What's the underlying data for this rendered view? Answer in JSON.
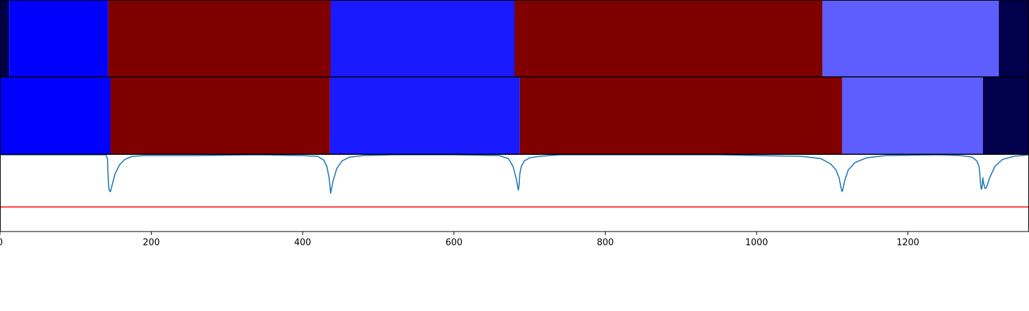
{
  "chart_data": [
    {
      "type": "bar",
      "subtype": "segmentation-band",
      "panel": "top",
      "xlim": [
        0,
        1360
      ],
      "segments": [
        {
          "start": 0,
          "end": 12,
          "color": "#00004d"
        },
        {
          "start": 12,
          "end": 143,
          "color": "#0000ff"
        },
        {
          "start": 143,
          "end": 437,
          "color": "#800000"
        },
        {
          "start": 437,
          "end": 680,
          "color": "#1a1aff"
        },
        {
          "start": 680,
          "end": 1087,
          "color": "#800000"
        },
        {
          "start": 1087,
          "end": 1320,
          "color": "#5e5eff"
        },
        {
          "start": 1320,
          "end": 1360,
          "color": "#00004d"
        }
      ]
    },
    {
      "type": "bar",
      "subtype": "segmentation-band",
      "panel": "middle",
      "xlim": [
        0,
        1360
      ],
      "segments": [
        {
          "start": 0,
          "end": 146,
          "color": "#0000ff"
        },
        {
          "start": 146,
          "end": 436,
          "color": "#800000"
        },
        {
          "start": 436,
          "end": 687,
          "color": "#1a1aff"
        },
        {
          "start": 687,
          "end": 1113,
          "color": "#800000"
        },
        {
          "start": 1113,
          "end": 1299,
          "color": "#5e5eff"
        },
        {
          "start": 1299,
          "end": 1360,
          "color": "#00004d"
        }
      ]
    },
    {
      "type": "line",
      "panel": "bottom",
      "xlim": [
        0,
        1360
      ],
      "ylim": [
        0,
        1
      ],
      "xticks": [
        "0",
        "200",
        "400",
        "600",
        "800",
        "1000",
        "1200"
      ],
      "xtick_values": [
        0,
        200,
        400,
        600,
        800,
        1000,
        1200
      ],
      "grid": false,
      "line_color": "#1f77b4",
      "threshold": {
        "value": 0.32,
        "color": "#ff0000"
      },
      "series": [
        {
          "x": [
            0,
            140,
            142,
            143,
            144,
            145,
            146,
            148,
            152,
            158,
            165,
            175,
            190,
            260,
            340,
            400,
            420,
            428,
            432,
            435,
            436,
            437,
            438,
            440,
            445,
            452,
            462,
            480,
            520,
            600,
            660,
            672,
            678,
            682,
            684,
            685,
            686,
            687,
            689,
            693,
            700,
            712,
            740,
            800,
            950,
            1060,
            1085,
            1098,
            1105,
            1109,
            1111,
            1112,
            1113,
            1114,
            1116,
            1121,
            1130,
            1145,
            1170,
            1240,
            1270,
            1285,
            1291,
            1294,
            1295,
            1296,
            1297,
            1298,
            1299,
            1300,
            1302,
            1304,
            1308,
            1315,
            1325,
            1340,
            1360
          ],
          "y": [
            1.0,
            1.0,
            0.95,
            0.7,
            0.55,
            0.53,
            0.52,
            0.6,
            0.75,
            0.87,
            0.94,
            0.98,
            0.99,
            0.99,
            1.0,
            0.99,
            0.98,
            0.93,
            0.85,
            0.7,
            0.6,
            0.5,
            0.55,
            0.65,
            0.82,
            0.92,
            0.97,
            0.99,
            1.0,
            1.0,
            0.99,
            0.95,
            0.85,
            0.7,
            0.6,
            0.54,
            0.6,
            0.75,
            0.85,
            0.92,
            0.96,
            0.98,
            1.0,
            1.0,
            1.0,
            0.98,
            0.95,
            0.88,
            0.8,
            0.7,
            0.6,
            0.55,
            0.52,
            0.55,
            0.65,
            0.8,
            0.9,
            0.96,
            0.99,
            1.0,
            0.99,
            0.97,
            0.92,
            0.85,
            0.75,
            0.62,
            0.55,
            0.58,
            0.7,
            0.63,
            0.56,
            0.58,
            0.7,
            0.85,
            0.94,
            0.98,
            1.0
          ]
        }
      ]
    }
  ]
}
